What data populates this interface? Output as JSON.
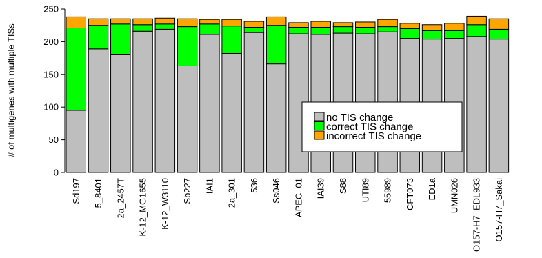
{
  "chart_data": {
    "type": "bar",
    "stacked": true,
    "title": "",
    "xlabel": "",
    "ylabel": "# of multigenes with multiple TISs",
    "ylim": [
      0,
      250
    ],
    "yticks": [
      "0",
      "50",
      "100",
      "150",
      "200",
      "250"
    ],
    "categories": [
      "Sd197",
      "5_8401",
      "2a_2457T",
      "K-12_MG1655",
      "K-12_W3110",
      "Sb227",
      "IAI1",
      "2a_301",
      "536",
      "Ss046",
      "APEC_01",
      "IAI39",
      "S88",
      "UTI89",
      "55989",
      "CFT073",
      "ED1a",
      "UMN026",
      "O157-H7_EDL933",
      "O157-H7_Sakai"
    ],
    "series": [
      {
        "name": "no TIS change",
        "color": "#bebebe",
        "values": [
          95,
          189,
          180,
          216,
          219,
          163,
          211,
          182,
          214,
          166,
          212,
          211,
          213,
          212,
          215,
          205,
          204,
          205,
          208,
          204
        ]
      },
      {
        "name": "correct TIS change",
        "color": "#00ff00",
        "values": [
          126,
          36,
          47,
          10,
          8,
          60,
          16,
          42,
          8,
          59,
          10,
          11,
          10,
          10,
          8,
          15,
          13,
          12,
          18,
          15
        ]
      },
      {
        "name": "incorrect TIS change",
        "color": "#ffa500",
        "values": [
          17,
          10,
          8,
          9,
          9,
          12,
          7,
          10,
          9,
          13,
          7,
          9,
          6,
          8,
          11,
          8,
          9,
          11,
          13,
          16
        ]
      }
    ],
    "legend": {
      "placement": "center-right"
    },
    "grid": false
  }
}
